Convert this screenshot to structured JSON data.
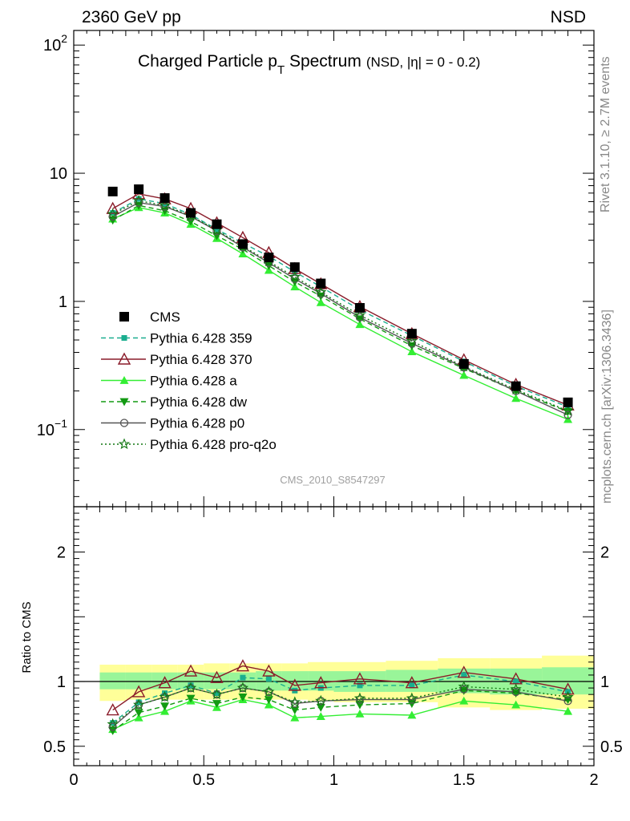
{
  "header": {
    "left": "2360 GeV pp",
    "right": "NSD"
  },
  "side_labels": {
    "rivet": "Rivet 3.1.10, ≥ 2.7M events",
    "mcplots": "mcplots.cern.ch [arXiv:1306.3436]"
  },
  "chart_data": [
    {
      "type": "line",
      "title_main": "Charged Particle p",
      "title_sub": "T",
      "title_tail": " Spectrum",
      "title_cond": "(NSD, |η| =   0 - 0.2)",
      "watermark": "CMS_2010_S8547297",
      "yscale": "log",
      "xlim": [
        0,
        2
      ],
      "ylim": [
        0.025,
        130
      ],
      "ytick_labels": [
        {
          "value": 100,
          "base": "10",
          "exp": "2"
        },
        {
          "value": 10,
          "base": "10",
          "exp": ""
        },
        {
          "value": 1,
          "base": "1",
          "exp": ""
        },
        {
          "value": 0.1,
          "base": "10",
          "exp": "−1"
        }
      ],
      "legend_position": "middle-left",
      "data_series": {
        "name": "CMS",
        "color": "#000000",
        "x": [
          0.15,
          0.25,
          0.35,
          0.45,
          0.55,
          0.65,
          0.75,
          0.85,
          0.95,
          1.1,
          1.3,
          1.5,
          1.7,
          1.9
        ],
        "y": [
          7.2,
          7.5,
          6.4,
          4.9,
          4.0,
          2.8,
          2.2,
          1.85,
          1.38,
          0.89,
          0.56,
          0.325,
          0.218,
          0.163
        ]
      },
      "series": [
        {
          "name": "Pythia 6.428 359",
          "color": "#1aae8f",
          "dash": "6,4",
          "marker": "square",
          "y": [
            4.9,
            6.3,
            5.8,
            4.75,
            3.65,
            2.85,
            2.25,
            1.7,
            1.3,
            0.86,
            0.54,
            0.34,
            0.218,
            0.15
          ]
        },
        {
          "name": "Pythia 6.428 370",
          "color": "#8a1c2a",
          "dash": "",
          "marker": "triangle-open",
          "y": [
            5.3,
            6.9,
            6.3,
            5.3,
            4.1,
            3.15,
            2.4,
            1.8,
            1.37,
            0.91,
            0.56,
            0.35,
            0.225,
            0.155
          ]
        },
        {
          "name": "Pythia 6.428 a",
          "color": "#33ee33",
          "dash": "",
          "marker": "triangle",
          "y": [
            4.4,
            5.4,
            4.9,
            4.0,
            3.1,
            2.35,
            1.75,
            1.3,
            0.98,
            0.66,
            0.405,
            0.265,
            0.175,
            0.12
          ]
        },
        {
          "name": "Pythia 6.428 dw",
          "color": "#129a12",
          "dash": "6,4",
          "marker": "triangle-down",
          "y": [
            4.3,
            5.6,
            5.1,
            4.2,
            3.25,
            2.55,
            1.9,
            1.42,
            1.1,
            0.73,
            0.45,
            0.3,
            0.2,
            0.138
          ]
        },
        {
          "name": "Pythia 6.428 p0",
          "color": "#555555",
          "dash": "",
          "marker": "circle-open",
          "y": [
            4.6,
            5.9,
            5.5,
            4.6,
            3.55,
            2.65,
            2.0,
            1.5,
            1.15,
            0.75,
            0.47,
            0.305,
            0.2,
            0.13
          ]
        },
        {
          "name": "Pythia 6.428 pro-q2o",
          "color": "#117711",
          "dash": "2,3",
          "marker": "star",
          "y": [
            4.8,
            6.1,
            5.6,
            4.65,
            3.6,
            2.7,
            2.05,
            1.55,
            1.18,
            0.78,
            0.49,
            0.31,
            0.205,
            0.14
          ]
        }
      ]
    },
    {
      "type": "line",
      "ylabel": "Ratio to CMS",
      "xlim": [
        0,
        2
      ],
      "ylim": [
        0.35,
        2.35
      ],
      "xtick_labels": [
        "0",
        "0.5",
        "1",
        "1.5",
        "2"
      ],
      "ytick_labels": [
        "0.5",
        "1",
        "2"
      ],
      "bands": {
        "x_edges": [
          0.1,
          0.2,
          0.3,
          0.4,
          0.5,
          0.6,
          0.7,
          0.8,
          0.9,
          1.0,
          1.2,
          1.4,
          1.6,
          1.8,
          2.0
        ],
        "yellow_lo": [
          0.85,
          0.86,
          0.86,
          0.86,
          0.86,
          0.86,
          0.86,
          0.86,
          0.85,
          0.84,
          0.84,
          0.8,
          0.78,
          0.79
        ],
        "yellow_hi": [
          1.13,
          1.13,
          1.13,
          1.13,
          1.14,
          1.14,
          1.14,
          1.14,
          1.15,
          1.15,
          1.16,
          1.18,
          1.18,
          1.2
        ],
        "green_lo": [
          0.94,
          0.94,
          0.94,
          0.94,
          0.94,
          0.94,
          0.93,
          0.93,
          0.93,
          0.92,
          0.92,
          0.91,
          0.9,
          0.9
        ],
        "green_hi": [
          1.07,
          1.07,
          1.07,
          1.07,
          1.07,
          1.07,
          1.08,
          1.08,
          1.08,
          1.08,
          1.09,
          1.1,
          1.1,
          1.11
        ]
      },
      "x": [
        0.15,
        0.25,
        0.35,
        0.45,
        0.55,
        0.65,
        0.75,
        0.85,
        0.95,
        1.1,
        1.3,
        1.5,
        1.7,
        1.9
      ],
      "series": [
        {
          "name": "Pythia 6.428 359",
          "y": [
            0.68,
            0.84,
            0.91,
            0.97,
            0.91,
            1.03,
            1.02,
            0.93,
            0.95,
            0.97,
            0.97,
            1.05,
            1.0,
            0.92
          ]
        },
        {
          "name": "Pythia 6.428 370",
          "y": [
            0.78,
            0.92,
            0.99,
            1.08,
            1.03,
            1.12,
            1.08,
            0.97,
            0.99,
            1.02,
            0.99,
            1.07,
            1.02,
            0.94
          ]
        },
        {
          "name": "Pythia 6.428 a",
          "y": [
            0.63,
            0.72,
            0.77,
            0.85,
            0.8,
            0.86,
            0.82,
            0.72,
            0.73,
            0.75,
            0.74,
            0.85,
            0.82,
            0.77
          ]
        },
        {
          "name": "Pythia 6.428 dw",
          "y": [
            0.62,
            0.76,
            0.81,
            0.87,
            0.83,
            0.88,
            0.86,
            0.78,
            0.8,
            0.82,
            0.83,
            0.93,
            0.91,
            0.86
          ]
        },
        {
          "name": "Pythia 6.428 p0",
          "y": [
            0.65,
            0.82,
            0.88,
            0.95,
            0.9,
            0.95,
            0.92,
            0.83,
            0.85,
            0.86,
            0.86,
            0.94,
            0.92,
            0.85
          ]
        },
        {
          "name": "Pythia 6.428 pro-q2o",
          "y": [
            0.67,
            0.82,
            0.88,
            0.95,
            0.9,
            0.95,
            0.92,
            0.84,
            0.85,
            0.87,
            0.87,
            0.96,
            0.94,
            0.88
          ]
        }
      ]
    }
  ]
}
